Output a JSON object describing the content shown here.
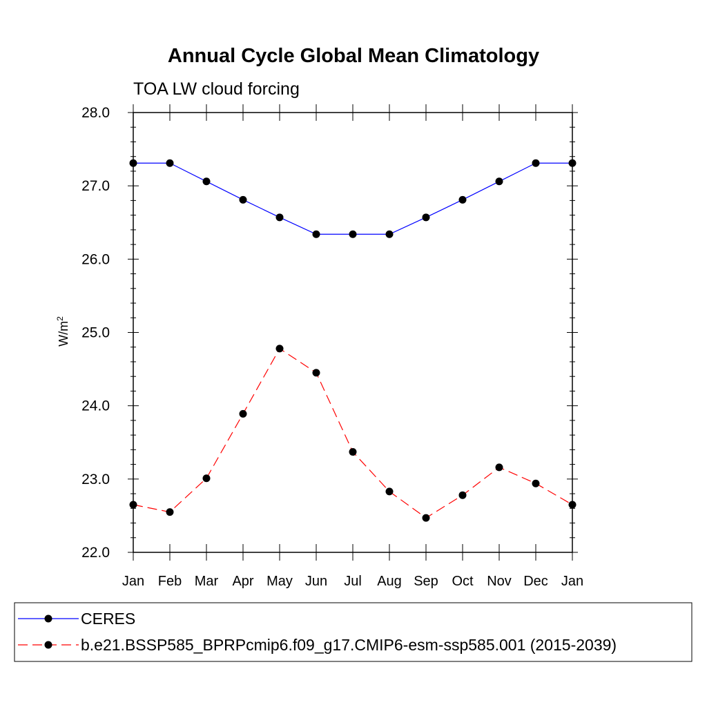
{
  "chart_data": {
    "type": "line",
    "title": "Annual Cycle Global Mean Climatology",
    "subtitle": "TOA LW cloud forcing",
    "ylabel": "W/m",
    "ylabel_superscript": "2",
    "xlabel": "",
    "categories": [
      "Jan",
      "Feb",
      "Mar",
      "Apr",
      "May",
      "Jun",
      "Jul",
      "Aug",
      "Sep",
      "Oct",
      "Nov",
      "Dec",
      "Jan"
    ],
    "ylim": [
      22.0,
      28.0
    ],
    "yticks": [
      "22.0",
      "23.0",
      "24.0",
      "25.0",
      "26.0",
      "27.0",
      "28.0"
    ],
    "grid": false,
    "legend_position": "bottom",
    "series": [
      {
        "name": "CERES",
        "color": "#0000ff",
        "style": "solid",
        "values": [
          27.31,
          27.31,
          27.06,
          26.81,
          26.57,
          26.34,
          26.34,
          26.34,
          26.57,
          26.81,
          27.06,
          27.31,
          27.31
        ]
      },
      {
        "name": "b.e21.BSSP585_BPRPcmip6.f09_g17.CMIP6-esm-ssp585.001 (2015-2039)",
        "color": "#ff0000",
        "style": "dashed",
        "values": [
          22.65,
          22.55,
          23.01,
          23.89,
          24.78,
          24.45,
          23.37,
          22.83,
          22.47,
          22.78,
          23.16,
          22.94,
          22.65
        ]
      }
    ]
  }
}
